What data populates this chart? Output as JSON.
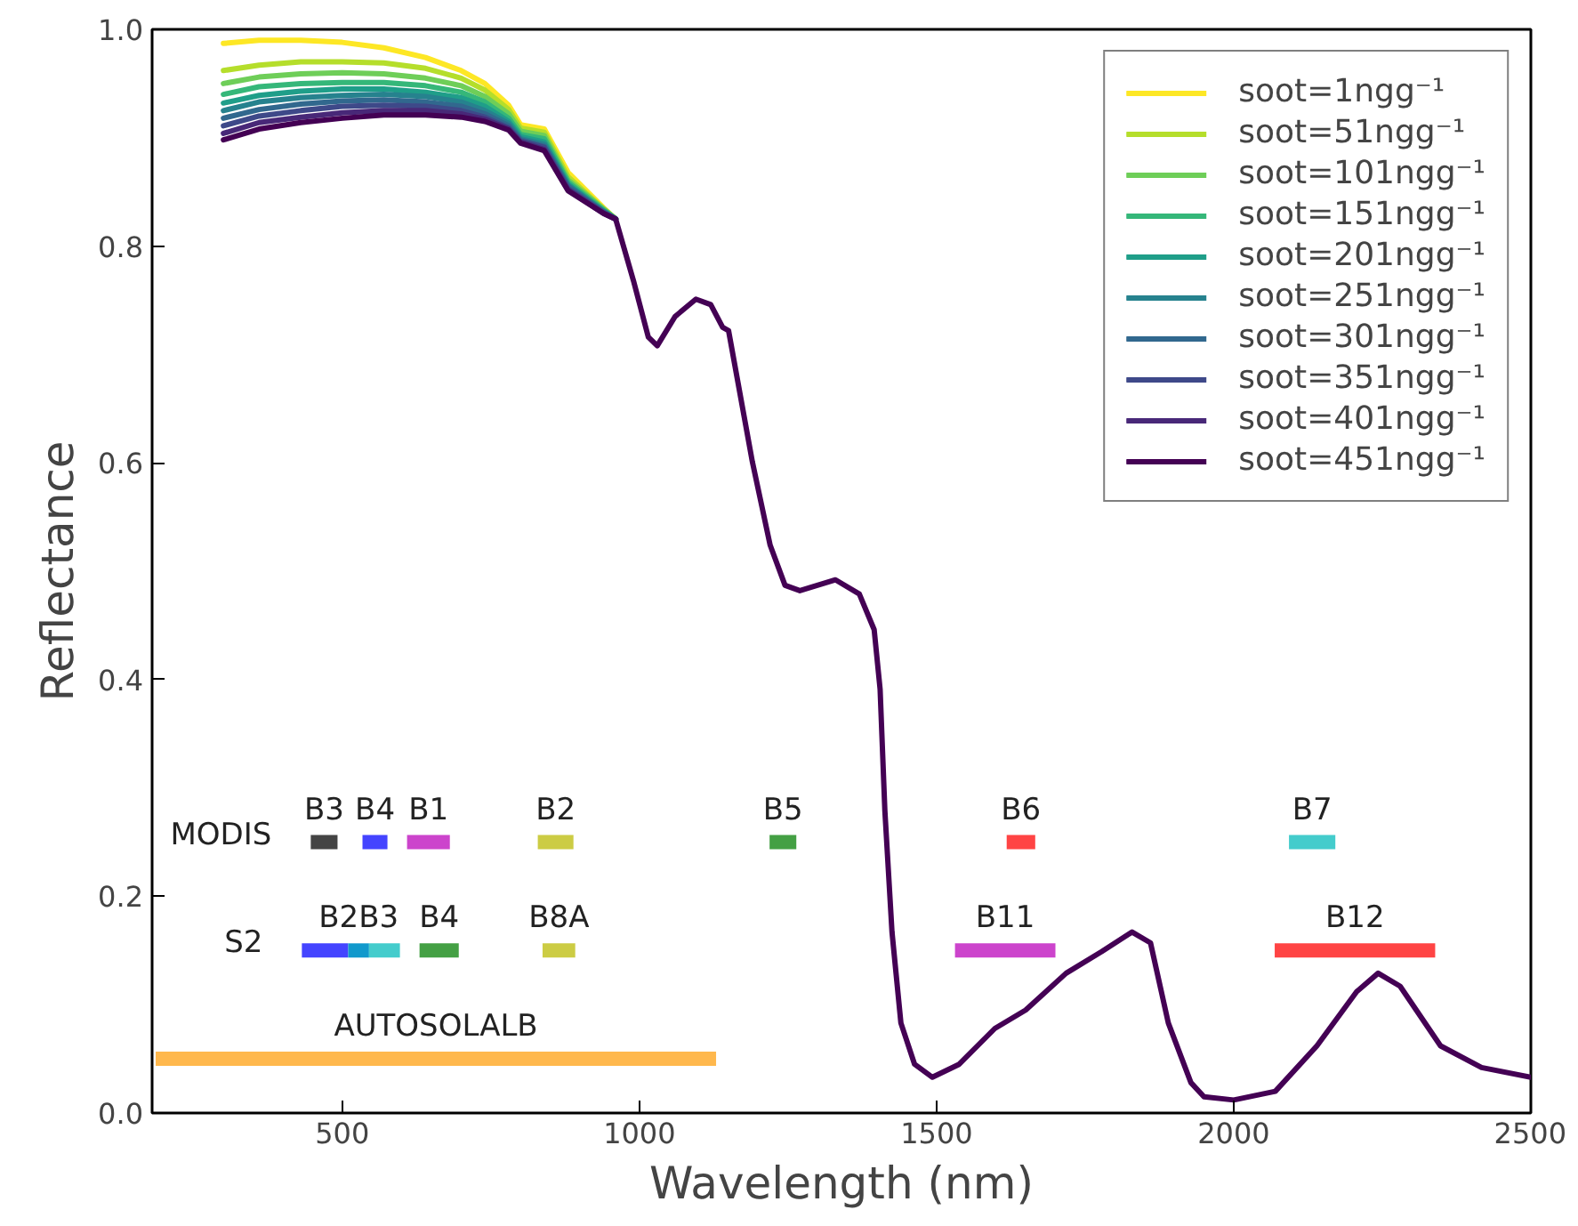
{
  "chart_data": {
    "type": "line",
    "xlabel": "Wavelength (nm)",
    "ylabel": "Reflectance",
    "xlim": [
      180,
      2500
    ],
    "ylim": [
      0,
      1
    ],
    "xticks": [
      500,
      1000,
      1500,
      2000,
      2500
    ],
    "yticks": [
      {
        "value": 0,
        "label": "0.0"
      },
      {
        "value": 0.2,
        "label": "0.2"
      },
      {
        "value": 0.4,
        "label": "0.4"
      },
      {
        "value": 0.6,
        "label": "0.6"
      },
      {
        "value": 0.8,
        "label": "0.8"
      },
      {
        "value": 1,
        "label": "1.0"
      }
    ],
    "grid": false,
    "legend": "top right",
    "marker": "none",
    "line_style": "solid",
    "x": [
      300,
      360,
      430,
      500,
      570,
      640,
      700,
      740,
      780,
      800,
      840,
      880,
      940,
      960,
      990,
      1015,
      1030,
      1060,
      1095,
      1120,
      1140,
      1150,
      1190,
      1220,
      1245,
      1270,
      1330,
      1370,
      1395,
      1405,
      1413,
      1425,
      1440,
      1463,
      1493,
      1538,
      1598,
      1650,
      1718,
      1778,
      1829,
      1860,
      1890,
      1928,
      1950,
      2000,
      2070,
      2140,
      2207,
      2243,
      2280,
      2348,
      2417,
      2500
    ],
    "series": [
      {
        "name": "soot=1ngg⁻¹",
        "color": "#fde725",
        "values": [
          0.987,
          0.99,
          0.99,
          0.988,
          0.983,
          0.974,
          0.962,
          0.95,
          0.93,
          0.912,
          0.908,
          0.868,
          0.835,
          0.825,
          null,
          null,
          null,
          null,
          null,
          null,
          null,
          null,
          null,
          null,
          null,
          null,
          null,
          null,
          null,
          null,
          null,
          null,
          null,
          null,
          null,
          null,
          null,
          null,
          null,
          null,
          null,
          null,
          null,
          null,
          null,
          null,
          null,
          null,
          null,
          null,
          null,
          null,
          null,
          null
        ]
      },
      {
        "name": "soot=51ngg⁻¹",
        "color": "#b5de2b",
        "values": [
          0.962,
          0.967,
          0.97,
          0.97,
          0.969,
          0.964,
          0.955,
          0.944,
          0.926,
          0.909,
          0.905,
          0.864,
          0.834,
          0.825,
          null,
          null,
          null,
          null,
          null,
          null,
          null,
          null,
          null,
          null,
          null,
          null,
          null,
          null,
          null,
          null,
          null,
          null,
          null,
          null,
          null,
          null,
          null,
          null,
          null,
          null,
          null,
          null,
          null,
          null,
          null,
          null,
          null,
          null,
          null,
          null,
          null,
          null,
          null,
          null
        ]
      },
      {
        "name": "soot=101ngg⁻¹",
        "color": "#6ece58",
        "values": [
          0.95,
          0.956,
          0.959,
          0.96,
          0.959,
          0.955,
          0.948,
          0.938,
          0.922,
          0.906,
          0.902,
          0.861,
          0.834,
          0.825,
          null,
          null,
          null,
          null,
          null,
          null,
          null,
          null,
          null,
          null,
          null,
          null,
          null,
          null,
          null,
          null,
          null,
          null,
          null,
          null,
          null,
          null,
          null,
          null,
          null,
          null,
          null,
          null,
          null,
          null,
          null,
          null,
          null,
          null,
          null,
          null,
          null,
          null,
          null,
          null
        ]
      },
      {
        "name": "soot=151ngg⁻¹",
        "color": "#35b779",
        "values": [
          0.94,
          0.947,
          0.95,
          0.951,
          0.951,
          0.948,
          0.942,
          0.933,
          0.918,
          0.903,
          0.899,
          0.859,
          0.833,
          0.825,
          null,
          null,
          null,
          null,
          null,
          null,
          null,
          null,
          null,
          null,
          null,
          null,
          null,
          null,
          null,
          null,
          null,
          null,
          null,
          null,
          null,
          null,
          null,
          null,
          null,
          null,
          null,
          null,
          null,
          null,
          null,
          null,
          null,
          null,
          null,
          null,
          null,
          null,
          null,
          null
        ]
      },
      {
        "name": "soot=201ngg⁻¹",
        "color": "#1f9e89",
        "values": [
          0.932,
          0.939,
          0.943,
          0.945,
          0.945,
          0.942,
          0.937,
          0.929,
          0.915,
          0.901,
          0.896,
          0.857,
          0.832,
          0.825,
          null,
          null,
          null,
          null,
          null,
          null,
          null,
          null,
          null,
          null,
          null,
          null,
          null,
          null,
          null,
          null,
          null,
          null,
          null,
          null,
          null,
          null,
          null,
          null,
          null,
          null,
          null,
          null,
          null,
          null,
          null,
          null,
          null,
          null,
          null,
          null,
          null,
          null,
          null,
          null
        ]
      },
      {
        "name": "soot=251ngg⁻¹",
        "color": "#26828e",
        "values": [
          0.925,
          0.933,
          0.937,
          0.939,
          0.94,
          0.938,
          0.933,
          0.925,
          0.913,
          0.899,
          0.894,
          0.856,
          0.832,
          0.825,
          null,
          null,
          null,
          null,
          null,
          null,
          null,
          null,
          null,
          null,
          null,
          null,
          null,
          null,
          null,
          null,
          null,
          null,
          null,
          null,
          null,
          null,
          null,
          null,
          null,
          null,
          null,
          null,
          null,
          null,
          null,
          null,
          null,
          null,
          null,
          null,
          null,
          null,
          null,
          null
        ]
      },
      {
        "name": "soot=301ngg⁻¹",
        "color": "#31688e",
        "values": [
          0.918,
          0.926,
          0.931,
          0.934,
          0.935,
          0.933,
          0.929,
          0.922,
          0.911,
          0.898,
          0.892,
          0.855,
          0.831,
          0.825,
          null,
          null,
          null,
          null,
          null,
          null,
          null,
          null,
          null,
          null,
          null,
          null,
          null,
          null,
          null,
          null,
          null,
          null,
          null,
          null,
          null,
          null,
          null,
          null,
          null,
          null,
          null,
          null,
          null,
          null,
          null,
          null,
          null,
          null,
          null,
          null,
          null,
          null,
          null,
          null
        ]
      },
      {
        "name": "soot=351ngg⁻¹",
        "color": "#3e4989",
        "values": [
          0.911,
          0.92,
          0.925,
          0.929,
          0.93,
          0.929,
          0.925,
          0.919,
          0.909,
          0.897,
          0.891,
          0.853,
          0.831,
          0.825,
          null,
          null,
          null,
          null,
          null,
          null,
          null,
          null,
          null,
          null,
          null,
          null,
          null,
          null,
          null,
          null,
          null,
          null,
          null,
          null,
          null,
          null,
          null,
          null,
          null,
          null,
          null,
          null,
          null,
          null,
          null,
          null,
          null,
          null,
          null,
          null,
          null,
          null,
          null,
          null
        ]
      },
      {
        "name": "soot=401ngg⁻¹",
        "color": "#482878",
        "values": [
          0.904,
          0.914,
          0.919,
          0.923,
          0.925,
          0.925,
          0.922,
          0.917,
          0.908,
          0.896,
          0.889,
          0.852,
          0.83,
          0.825,
          null,
          null,
          null,
          null,
          null,
          null,
          null,
          null,
          null,
          null,
          null,
          null,
          null,
          null,
          null,
          null,
          null,
          null,
          null,
          null,
          null,
          null,
          null,
          null,
          null,
          null,
          null,
          null,
          null,
          null,
          null,
          null,
          null,
          null,
          null,
          null,
          null,
          null,
          null,
          null
        ]
      },
      {
        "name": "soot=451ngg⁻¹",
        "color": "#440154",
        "values": [
          0.898,
          0.908,
          0.914,
          0.918,
          0.921,
          0.921,
          0.919,
          0.915,
          0.907,
          0.895,
          0.888,
          0.851,
          0.83,
          0.825,
          0.768,
          0.716,
          0.708,
          0.735,
          0.751,
          0.746,
          0.725,
          0.722,
          0.601,
          0.524,
          0.487,
          0.482,
          0.492,
          0.479,
          0.446,
          0.391,
          0.279,
          0.167,
          0.083,
          0.045,
          0.033,
          0.045,
          0.078,
          0.095,
          0.129,
          0.149,
          0.167,
          0.157,
          0.083,
          0.028,
          0.015,
          0.012,
          0.02,
          0.062,
          0.112,
          0.129,
          0.117,
          0.062,
          0.042,
          0.033
        ]
      },
      {
        "type": "line",
        "color": "#444444",
        "x": [
          447,
          492
        ],
        "values": [
          0.25,
          0.25
        ]
      },
      {
        "type": "line",
        "color": "#4444ff",
        "x": [
          534,
          576
        ],
        "values": [
          0.25,
          0.25
        ]
      },
      {
        "type": "line",
        "color": "#cc44cc",
        "x": [
          609,
          681
        ],
        "values": [
          0.25,
          0.25
        ]
      },
      {
        "type": "line",
        "color": "#cccc44",
        "x": [
          829,
          889
        ],
        "values": [
          0.25,
          0.25
        ]
      },
      {
        "type": "line",
        "color": "#44a044",
        "x": [
          1219,
          1264
        ],
        "values": [
          0.25,
          0.25
        ]
      },
      {
        "type": "line",
        "color": "#ff4444",
        "x": [
          1618,
          1666
        ],
        "values": [
          0.25,
          0.25
        ]
      },
      {
        "type": "line",
        "color": "#44cccc",
        "x": [
          2093,
          2171
        ],
        "values": [
          0.25,
          0.25
        ]
      },
      {
        "type": "line",
        "color": "#4444ff",
        "x": [
          432,
          510
        ],
        "values": [
          0.15,
          0.15
        ]
      },
      {
        "type": "line",
        "color": "#1199cc",
        "x": [
          510,
          545
        ],
        "values": [
          0.15,
          0.15
        ]
      },
      {
        "type": "line",
        "color": "#44cccc",
        "x": [
          545,
          597
        ],
        "values": [
          0.15,
          0.15
        ]
      },
      {
        "type": "line",
        "color": "#44a044",
        "x": [
          630,
          696
        ],
        "values": [
          0.15,
          0.15
        ]
      },
      {
        "type": "line",
        "color": "#cccc44",
        "x": [
          837,
          892
        ],
        "values": [
          0.15,
          0.15
        ]
      },
      {
        "type": "line",
        "color": "#cc44cc",
        "x": [
          1531,
          1700
        ],
        "values": [
          0.15,
          0.15
        ]
      },
      {
        "type": "line",
        "color": "#ff4444",
        "x": [
          2069,
          2339
        ],
        "values": [
          0.15,
          0.15
        ]
      },
      {
        "type": "line",
        "color": "#ffb84d",
        "x": [
          186,
          1129
        ],
        "values": [
          0.05,
          0.05
        ]
      }
    ],
    "annotations": [
      {
        "text": "MODIS",
        "x": 447,
        "y": 0.25
      },
      {
        "text": "B3",
        "x": 469.5,
        "y": 0.25
      },
      {
        "text": "B4",
        "x": 555,
        "y": 0.25
      },
      {
        "text": "B1",
        "x": 645,
        "y": 0.25
      },
      {
        "text": "B2",
        "x": 859,
        "y": 0.25
      },
      {
        "text": "B5",
        "x": 1241.5,
        "y": 0.25
      },
      {
        "text": "B6",
        "x": 1642,
        "y": 0.25
      },
      {
        "text": "B7",
        "x": 2132,
        "y": 0.25
      },
      {
        "text": "S2",
        "x": 432,
        "y": 0.15
      },
      {
        "text": "B2B3",
        "x": 527.5,
        "y": 0.15
      },
      {
        "text": "B4",
        "x": 663,
        "y": 0.15
      },
      {
        "text": "B8A",
        "x": 864.5,
        "y": 0.15
      },
      {
        "text": "B11",
        "x": 1615.5,
        "y": 0.15
      },
      {
        "text": "B12",
        "x": 2204,
        "y": 0.15
      },
      {
        "text": "AUTOSOLALB",
        "x": 657.5,
        "y": 0.05
      }
    ]
  }
}
